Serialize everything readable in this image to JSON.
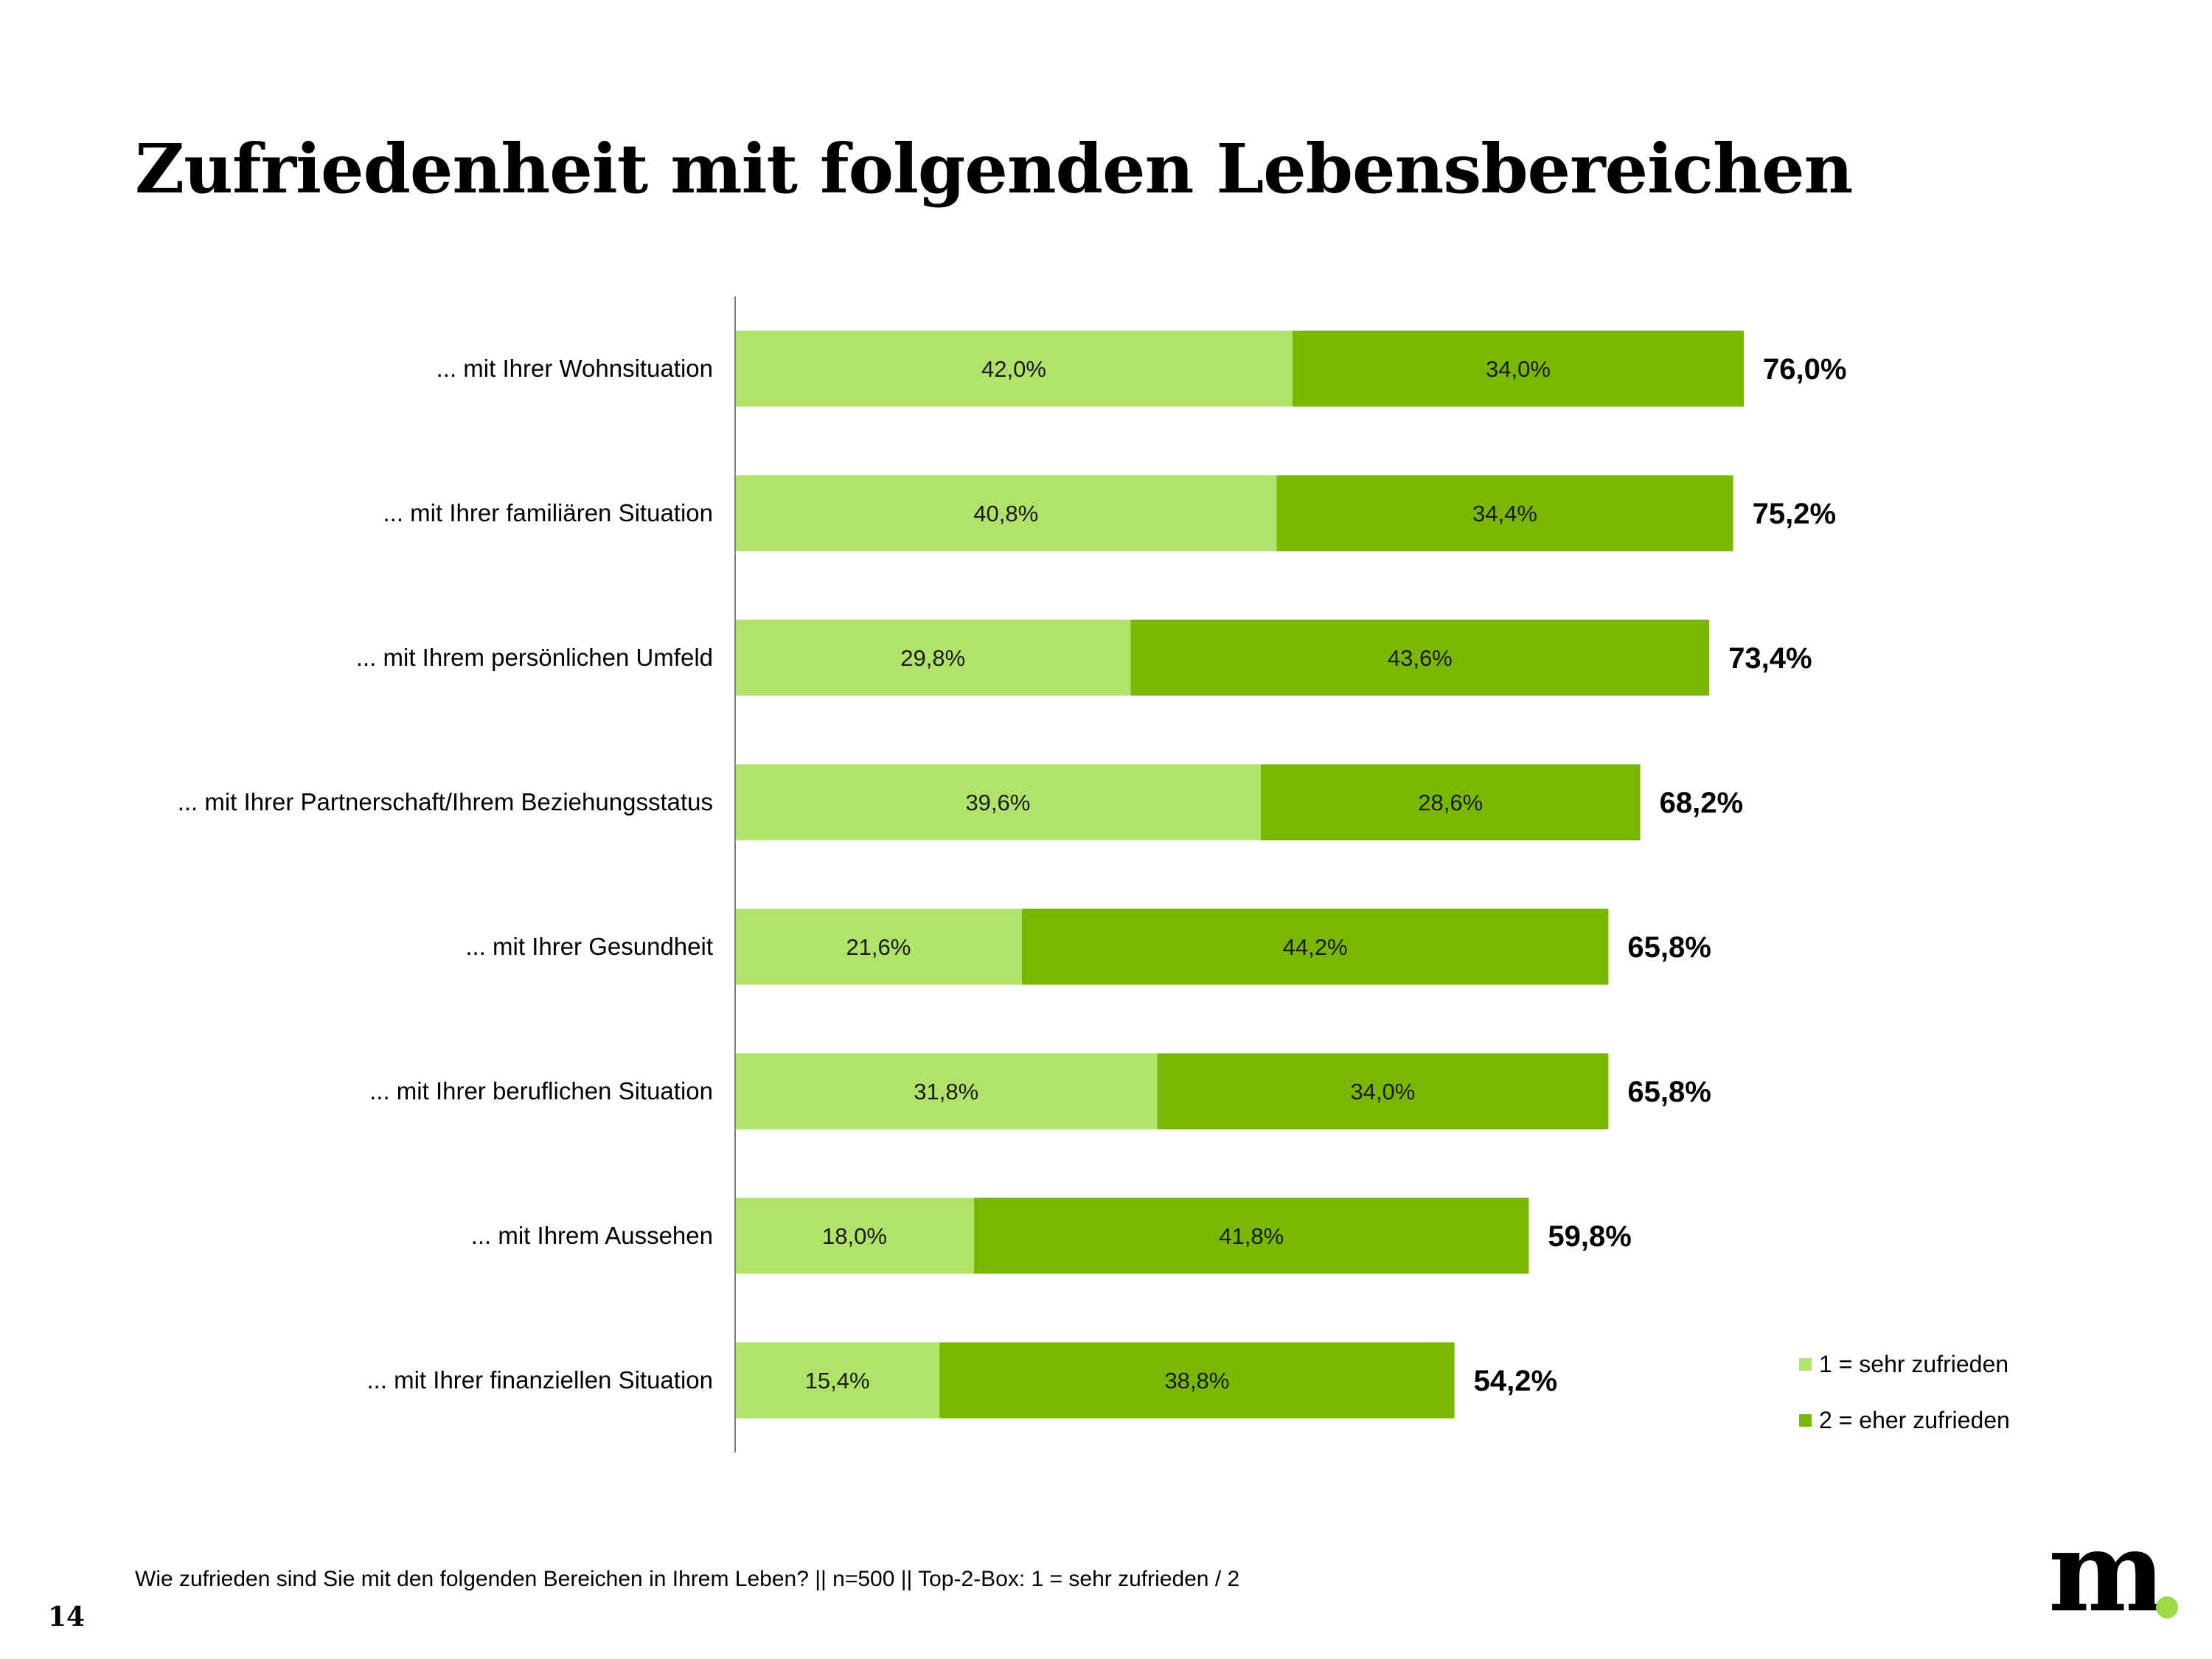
{
  "slide": {
    "title": "Zufriedenheit mit folgenden Lebensbereichen",
    "footnote": "Wie zufrieden sind Sie mit den folgenden Bereichen in Ihrem Leben? || n=500 || Top-2-Box: 1 = sehr zufrieden / 2",
    "page_number": "14",
    "logo_text": "m"
  },
  "colors": {
    "series1": "#b1e36a",
    "series2": "#7ab800",
    "axis": "#808080",
    "logo_dot": "#9fd94a"
  },
  "chart_data": {
    "type": "bar",
    "orientation": "horizontal",
    "stacked": true,
    "title": "Zufriedenheit mit folgenden Lebensbereichen",
    "xlabel": "",
    "ylabel": "",
    "xlim": [
      0,
      100
    ],
    "grid": false,
    "legend_position": "bottom-right",
    "categories": [
      "... mit Ihrer Wohnsituation",
      "... mit Ihrer familiären Situation",
      "... mit Ihrem persönlichen Umfeld",
      "... mit Ihrer Partnerschaft/Ihrem Beziehungsstatus",
      "... mit Ihrer Gesundheit",
      "... mit Ihrer beruflichen Situation",
      "... mit Ihrem Aussehen",
      "... mit Ihrer finanziellen Situation"
    ],
    "series": [
      {
        "name": "1 = sehr zufrieden",
        "values": [
          42.0,
          40.8,
          29.8,
          39.6,
          21.6,
          31.8,
          18.0,
          15.4
        ],
        "labels": [
          "42,0%",
          "40,8%",
          "29,8%",
          "39,6%",
          "21,6%",
          "31,8%",
          "18,0%",
          "15,4%"
        ]
      },
      {
        "name": "2  = eher zufrieden",
        "values": [
          34.0,
          34.4,
          43.6,
          28.6,
          44.2,
          34.0,
          41.8,
          38.8
        ],
        "labels": [
          "34,0%",
          "34,4%",
          "43,6%",
          "28,6%",
          "44,2%",
          "34,0%",
          "41,8%",
          "38,8%"
        ]
      }
    ],
    "totals": [
      76.0,
      75.2,
      73.4,
      68.2,
      65.8,
      65.8,
      59.8,
      54.2
    ],
    "total_labels": [
      "76,0%",
      "75,2%",
      "73,4%",
      "68,2%",
      "65,8%",
      "65,8%",
      "59,8%",
      "54,2%"
    ]
  }
}
